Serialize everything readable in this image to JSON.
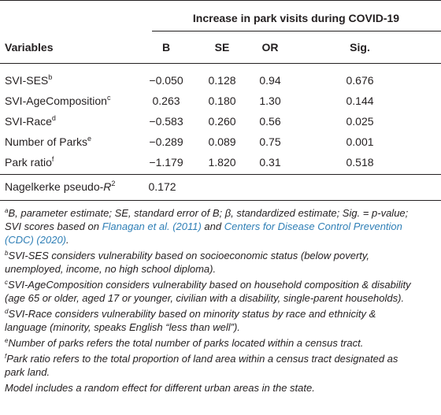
{
  "header": {
    "group_title": "Increase in park visits during COVID-19",
    "col_variables": "Variables",
    "col_b": "B",
    "col_se": "SE",
    "col_or": "OR",
    "col_sig": "Sig."
  },
  "rows": [
    {
      "label": "SVI-SES",
      "sup": "b",
      "b": "−0.050",
      "se": "0.128",
      "or": "0.94",
      "sig": "0.676"
    },
    {
      "label": "SVI-AgeComposition",
      "sup": "c",
      "b": "0.263",
      "se": "0.180",
      "or": "1.30",
      "sig": "0.144"
    },
    {
      "label": "SVI-Race",
      "sup": "d",
      "b": "−0.583",
      "se": "0.260",
      "or": "0.56",
      "sig": "0.025"
    },
    {
      "label": "Number of Parks",
      "sup": "e",
      "b": "−0.289",
      "se": "0.089",
      "or": "0.75",
      "sig": "0.001"
    },
    {
      "label": "Park ratio",
      "sup": "f",
      "b": "−1.179",
      "se": "1.820",
      "or": "0.31",
      "sig": "0.518"
    }
  ],
  "pseudo_r2": {
    "label_prefix": "Nagelkerke pseudo-",
    "label_var": "R",
    "label_exp": "2",
    "value": "0.172"
  },
  "footnotes": {
    "a": {
      "sup": "a",
      "line1": "B, parameter estimate; SE, standard error of B; β, standardized estimate; Sig. = p-value;",
      "line2_pre": "SVI scores based on ",
      "line2_link1": "Flanagan et al. (2011)",
      "line2_mid": " and ",
      "line2_link2": "Centers for Disease Control Prevention",
      "line3_link": "(CDC) (2020)",
      "line3_post": "."
    },
    "b": {
      "sup": "b",
      "line1": "SVI-SES considers vulnerability based on socioeconomic status (below poverty,",
      "line2": "unemployed, income, no high school diploma)."
    },
    "c": {
      "sup": "c",
      "line1": "SVI-AgeComposition considers vulnerability based on household composition & disability",
      "line2": "(age 65 or older, aged 17 or younger, civilian with a disability, single-parent households)."
    },
    "d": {
      "sup": "d",
      "line1": "SVI-Race considers vulnerability based on minority status by race and ethnicity &",
      "line2": "language (minority, speaks English “less than well”)."
    },
    "e": {
      "sup": "e",
      "line1": "Number of parks refers the total number of parks located within a census tract."
    },
    "f": {
      "sup": "f",
      "line1": "Park ratio refers to the total proportion of land area within a census tract designated as",
      "line2": "park land."
    },
    "model_note": "Model includes a random effect for different urban areas in the state."
  }
}
